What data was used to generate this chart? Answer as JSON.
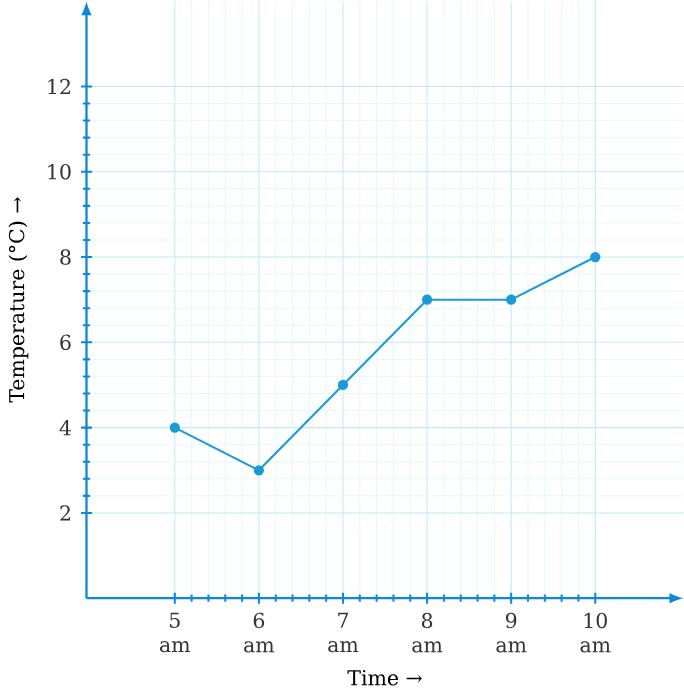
{
  "chart_data": {
    "type": "line",
    "xlabel": "Time →",
    "ylabel": "Temperature (°C) →",
    "categories": [
      "5 am",
      "6 am",
      "7 am",
      "8 am",
      "9 am",
      "10 am"
    ],
    "series": [
      {
        "color": "#1a9ad6",
        "values": [
          4,
          3,
          5,
          7,
          7,
          8
        ]
      }
    ],
    "ylim": [
      0,
      14
    ],
    "yticks": [
      2,
      4,
      6,
      8,
      10,
      12
    ],
    "grid": true,
    "marker": "circle",
    "line_style": "solid"
  }
}
